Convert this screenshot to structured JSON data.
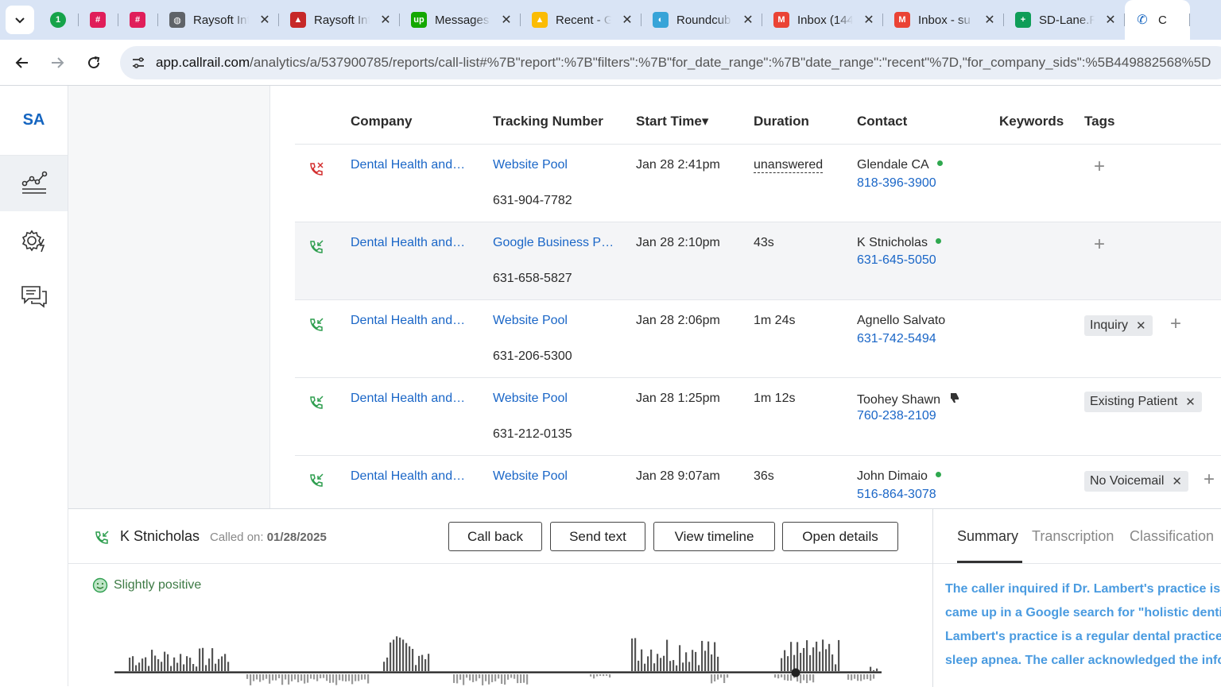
{
  "browser": {
    "tabs": [
      {
        "title": "",
        "favicon": "1password-icon",
        "color": "#16a34a",
        "glyph": "1"
      },
      {
        "title": "",
        "favicon": "slack-icon",
        "color": "#e01e5a",
        "glyph": "#"
      },
      {
        "title": "",
        "favicon": "slack-icon",
        "color": "#e01e5a",
        "glyph": "#"
      },
      {
        "title": "Raysoft Inf",
        "favicon": "globe-icon",
        "color": "#5f6368",
        "glyph": "◍"
      },
      {
        "title": "Raysoft Inf",
        "favicon": "raysoft-icon",
        "color": "#c62828",
        "glyph": "▲"
      },
      {
        "title": "Messages",
        "favicon": "upwork-icon",
        "color": "#14a800",
        "glyph": "up"
      },
      {
        "title": "Recent - G",
        "favicon": "google-drive-icon",
        "color": "#fbbc04",
        "glyph": "▲"
      },
      {
        "title": "Roundcub",
        "favicon": "roundcube-icon",
        "color": "#37a4d8",
        "glyph": "◐"
      },
      {
        "title": "Inbox (144",
        "favicon": "gmail-icon",
        "color": "#ea4335",
        "glyph": "M"
      },
      {
        "title": "Inbox - su",
        "favicon": "gmail-icon",
        "color": "#ea4335",
        "glyph": "M"
      },
      {
        "title": "SD-Lane.R",
        "favicon": "google-sheets-icon",
        "color": "#0f9d58",
        "glyph": "+"
      }
    ],
    "url_host": "app.callrail.com",
    "url_path": "/analytics/a/537900785/reports/call-list#%7B\"report\":%7B\"filters\":%7B\"for_date_range\":%7B\"date_range\":\"recent\"%7D,\"for_company_sids\":%5B449882568%5D"
  },
  "leftnav": {
    "account_initials": "SA",
    "items": [
      {
        "name": "analytics-icon",
        "active": true
      },
      {
        "name": "settings-automation-icon",
        "active": false
      },
      {
        "name": "conversations-icon",
        "active": false
      }
    ]
  },
  "table": {
    "headers": {
      "company": "Company",
      "tracking_number": "Tracking Number",
      "start_time": "Start Time▾",
      "duration": "Duration",
      "contact": "Contact",
      "keywords": "Keywords",
      "tags": "Tags"
    },
    "rows": [
      {
        "status": "missed",
        "company": "Dental Health and…",
        "source": "Website Pool",
        "tracking_number": "631-904-7782",
        "start_time": "Jan 28 2:41pm",
        "duration": "unanswered",
        "contact_name": "Glendale CA",
        "contact_phone": "818-396-3900",
        "contact_badge": "dot",
        "tag": ""
      },
      {
        "status": "answered",
        "company": "Dental Health and…",
        "source": "Google Business P…",
        "tracking_number": "631-658-5827",
        "start_time": "Jan 28 2:10pm",
        "duration": "43s",
        "contact_name": "K Stnicholas",
        "contact_phone": "631-645-5050",
        "contact_badge": "dot",
        "tag": ""
      },
      {
        "status": "answered",
        "company": "Dental Health and…",
        "source": "Website Pool",
        "tracking_number": "631-206-5300",
        "start_time": "Jan 28 2:06pm",
        "duration": "1m 24s",
        "contact_name": "Agnello Salvato",
        "contact_phone": "631-742-5494",
        "contact_badge": "",
        "tag": "Inquiry"
      },
      {
        "status": "answered",
        "company": "Dental Health and…",
        "source": "Website Pool",
        "tracking_number": "631-212-0135",
        "start_time": "Jan 28 1:25pm",
        "duration": "1m 12s",
        "contact_name": "Toohey Shawn",
        "contact_phone": "760-238-2109",
        "contact_badge": "thumbs-down",
        "tag": "Existing Patient"
      },
      {
        "status": "answered",
        "company": "Dental Health and…",
        "source": "Website Pool",
        "tracking_number": "",
        "start_time": "Jan 28 9:07am",
        "duration": "36s",
        "contact_name": "John Dimaio",
        "contact_phone": "516-864-3078",
        "contact_badge": "dot",
        "tag": "No Voicemail"
      }
    ]
  },
  "detail": {
    "caller_name": "K Stnicholas",
    "called_on_label": "Called on:",
    "called_on_date": "01/28/2025",
    "buttons": {
      "call_back": "Call back",
      "send_text": "Send text",
      "view_timeline": "View timeline",
      "open_details": "Open details"
    },
    "sentiment": "Slightly positive",
    "tabs": {
      "summary": "Summary",
      "transcription": "Transcription",
      "classification": "Classification"
    },
    "summary_lines": [
      "The caller inquired if Dr. Lambert's practice is c",
      "came up in a Google search for \"holistic dentist",
      "Lambert's practice is a regular dental practice,",
      "sleep apnea. The caller acknowledged the infor"
    ]
  },
  "colors": {
    "link": "#1a66c7",
    "missed": "#d32f2f",
    "answered": "#2e9e4f",
    "accent": "#1565c0",
    "summary_text": "#4a9be0"
  }
}
